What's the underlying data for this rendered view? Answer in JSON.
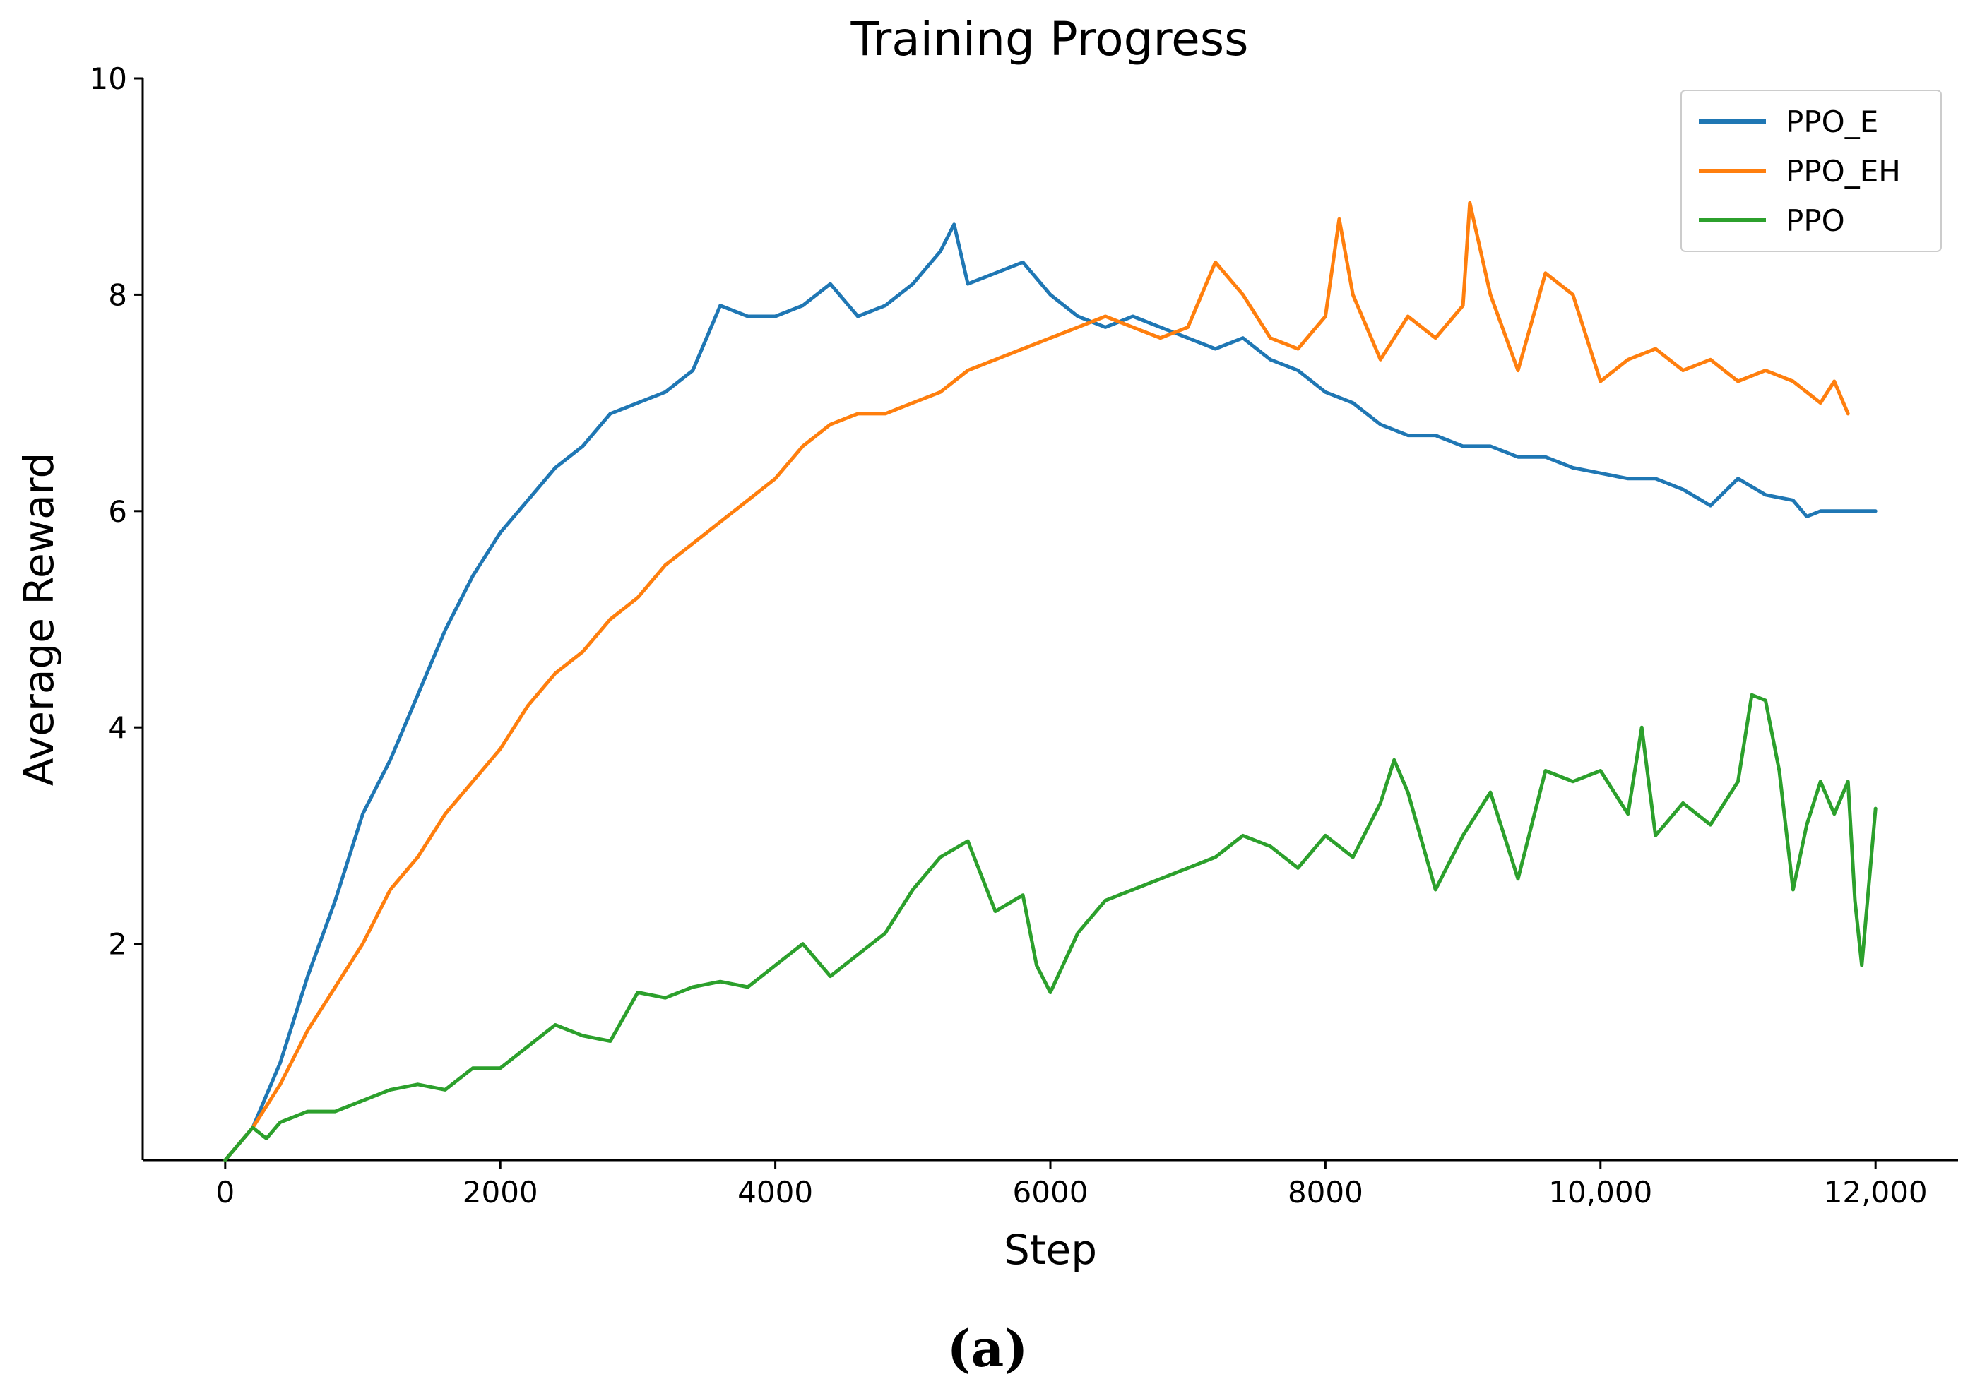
{
  "figure": {
    "caption": "(a)"
  },
  "chart_data": {
    "type": "line",
    "title": "Training Progress",
    "xlabel": "Step",
    "ylabel": "Average Reward",
    "xlim": [
      -600,
      12600
    ],
    "ylim": [
      0,
      10
    ],
    "xticks": [
      0,
      2000,
      4000,
      6000,
      8000,
      10000,
      12000
    ],
    "xtick_labels": [
      "0",
      "2000",
      "4000",
      "6000",
      "8000",
      "10,000",
      "12,000"
    ],
    "yticks": [
      2,
      4,
      6,
      8,
      10
    ],
    "ytick_labels": [
      "2",
      "4",
      "6",
      "8",
      "10"
    ],
    "grid": false,
    "legend_position": "top-right",
    "series": [
      {
        "name": "PPO_E",
        "color": "#1f77b4",
        "x": [
          0,
          200,
          400,
          600,
          800,
          1000,
          1200,
          1400,
          1600,
          1800,
          2000,
          2200,
          2400,
          2600,
          2800,
          3000,
          3200,
          3400,
          3600,
          3800,
          4000,
          4200,
          4400,
          4600,
          4800,
          5000,
          5200,
          5300,
          5400,
          5600,
          5800,
          6000,
          6200,
          6400,
          6600,
          6800,
          7000,
          7200,
          7400,
          7600,
          7800,
          8000,
          8200,
          8400,
          8600,
          8800,
          9000,
          9200,
          9400,
          9600,
          9800,
          10000,
          10200,
          10400,
          10600,
          10800,
          11000,
          11200,
          11400,
          11500,
          11600,
          11800,
          12000
        ],
        "y": [
          0.0,
          0.3,
          0.9,
          1.7,
          2.4,
          3.2,
          3.7,
          4.3,
          4.9,
          5.4,
          5.8,
          6.1,
          6.4,
          6.6,
          6.9,
          7.0,
          7.1,
          7.3,
          7.9,
          7.8,
          7.8,
          7.9,
          8.1,
          7.8,
          7.9,
          8.1,
          8.4,
          8.65,
          8.1,
          8.2,
          8.3,
          8.0,
          7.8,
          7.7,
          7.8,
          7.7,
          7.6,
          7.5,
          7.6,
          7.4,
          7.3,
          7.1,
          7.0,
          6.8,
          6.7,
          6.7,
          6.6,
          6.6,
          6.5,
          6.5,
          6.4,
          6.35,
          6.3,
          6.3,
          6.2,
          6.05,
          6.3,
          6.15,
          6.1,
          5.95,
          6.0,
          6.0,
          6.0
        ]
      },
      {
        "name": "PPO_EH",
        "color": "#ff7f0e",
        "x": [
          0,
          200,
          400,
          600,
          800,
          1000,
          1200,
          1400,
          1600,
          1800,
          2000,
          2200,
          2400,
          2600,
          2800,
          3000,
          3200,
          3400,
          3600,
          3800,
          4000,
          4200,
          4400,
          4600,
          4800,
          5000,
          5200,
          5400,
          5600,
          5800,
          6000,
          6200,
          6400,
          6600,
          6800,
          7000,
          7200,
          7400,
          7600,
          7800,
          8000,
          8100,
          8200,
          8400,
          8600,
          8800,
          9000,
          9050,
          9200,
          9400,
          9600,
          9800,
          10000,
          10200,
          10400,
          10600,
          10800,
          11000,
          11200,
          11400,
          11600,
          11700,
          11800
        ],
        "y": [
          0.0,
          0.3,
          0.7,
          1.2,
          1.6,
          2.0,
          2.5,
          2.8,
          3.2,
          3.5,
          3.8,
          4.2,
          4.5,
          4.7,
          5.0,
          5.2,
          5.5,
          5.7,
          5.9,
          6.1,
          6.3,
          6.6,
          6.8,
          6.9,
          6.9,
          7.0,
          7.1,
          7.3,
          7.4,
          7.5,
          7.6,
          7.7,
          7.8,
          7.7,
          7.6,
          7.7,
          8.3,
          8.0,
          7.6,
          7.5,
          7.8,
          8.7,
          8.0,
          7.4,
          7.8,
          7.6,
          7.9,
          8.85,
          8.0,
          7.3,
          8.2,
          8.0,
          7.2,
          7.4,
          7.5,
          7.3,
          7.4,
          7.2,
          7.3,
          7.2,
          7.0,
          7.2,
          6.9
        ]
      },
      {
        "name": "PPO",
        "color": "#2ca02c",
        "x": [
          0,
          200,
          300,
          400,
          600,
          800,
          1000,
          1200,
          1400,
          1600,
          1800,
          2000,
          2200,
          2400,
          2600,
          2800,
          3000,
          3200,
          3400,
          3600,
          3800,
          4000,
          4200,
          4400,
          4600,
          4800,
          5000,
          5200,
          5400,
          5600,
          5800,
          5900,
          6000,
          6200,
          6400,
          6600,
          6800,
          7000,
          7200,
          7400,
          7600,
          7800,
          8000,
          8200,
          8400,
          8500,
          8600,
          8800,
          9000,
          9200,
          9400,
          9600,
          9800,
          10000,
          10200,
          10300,
          10400,
          10600,
          10800,
          11000,
          11100,
          11200,
          11300,
          11400,
          11500,
          11600,
          11700,
          11800,
          11850,
          11900,
          12000
        ],
        "y": [
          0.0,
          0.3,
          0.2,
          0.35,
          0.45,
          0.45,
          0.55,
          0.65,
          0.7,
          0.65,
          0.85,
          0.85,
          1.05,
          1.25,
          1.15,
          1.1,
          1.55,
          1.5,
          1.6,
          1.65,
          1.6,
          1.8,
          2.0,
          1.7,
          1.9,
          2.1,
          2.5,
          2.8,
          2.95,
          2.3,
          2.45,
          1.8,
          1.55,
          2.1,
          2.4,
          2.5,
          2.6,
          2.7,
          2.8,
          3.0,
          2.9,
          2.7,
          3.0,
          2.8,
          3.3,
          3.7,
          3.4,
          2.5,
          3.0,
          3.4,
          2.6,
          3.6,
          3.5,
          3.6,
          3.2,
          4.0,
          3.0,
          3.3,
          3.1,
          3.5,
          4.3,
          4.25,
          3.6,
          2.5,
          3.1,
          3.5,
          3.2,
          3.5,
          2.4,
          1.8,
          3.25
        ]
      }
    ]
  }
}
